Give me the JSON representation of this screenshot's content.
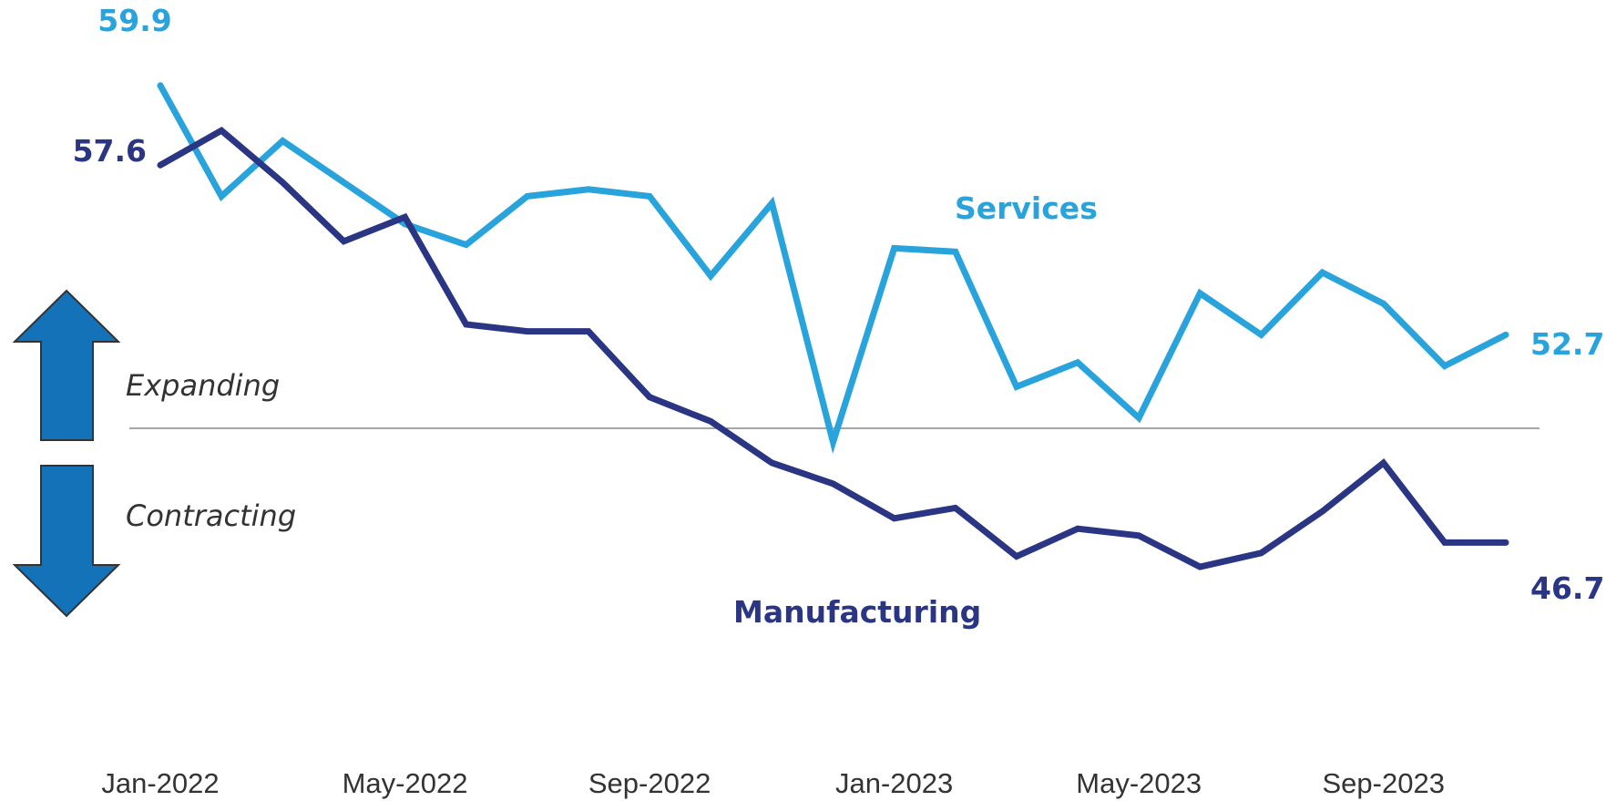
{
  "chart_data": {
    "type": "line",
    "x": [
      "Jan-2022",
      "Feb-2022",
      "Mar-2022",
      "Apr-2022",
      "May-2022",
      "Jun-2022",
      "Jul-2022",
      "Aug-2022",
      "Sep-2022",
      "Oct-2022",
      "Nov-2022",
      "Dec-2022",
      "Jan-2023",
      "Feb-2023",
      "Mar-2023",
      "Apr-2023",
      "May-2023",
      "Jun-2023",
      "Jul-2023",
      "Aug-2023",
      "Sep-2023",
      "Oct-2023",
      "Nov-2023"
    ],
    "x_tick_labels": [
      "Jan-2022",
      "May-2022",
      "Sep-2022",
      "Jan-2023",
      "May-2023",
      "Sep-2023"
    ],
    "ylim": [
      40,
      61
    ],
    "reference_line": 50,
    "series": [
      {
        "name": "Services",
        "color": "#29a3dc",
        "values": [
          59.9,
          56.7,
          58.3,
          57.1,
          55.9,
          55.3,
          56.7,
          56.9,
          56.7,
          54.4,
          56.5,
          49.6,
          55.2,
          55.1,
          51.2,
          51.9,
          50.3,
          53.9,
          52.7,
          54.5,
          53.6,
          51.8,
          52.7
        ],
        "start_label": "59.9",
        "end_label": "52.7"
      },
      {
        "name": "Manufacturing",
        "color": "#2a3583",
        "values": [
          57.6,
          58.6,
          57.1,
          55.4,
          56.1,
          53.0,
          52.8,
          52.8,
          50.9,
          50.2,
          49.0,
          48.4,
          47.4,
          47.7,
          46.3,
          47.1,
          46.9,
          46.0,
          46.4,
          47.6,
          49.0,
          46.7,
          46.7
        ],
        "start_label": "57.6",
        "end_label": "46.7"
      }
    ],
    "annotations": {
      "expanding": "Expanding",
      "contracting": "Contracting"
    },
    "arrow_color": "#1472b8",
    "grid": false
  }
}
